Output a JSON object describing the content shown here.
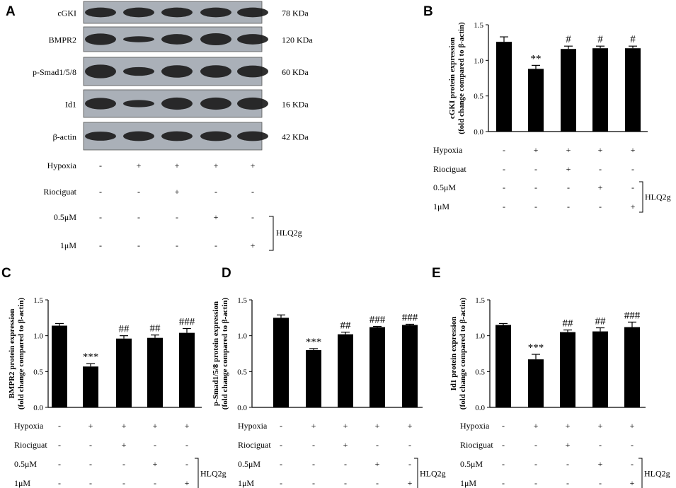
{
  "blot": {
    "panel_label": "A",
    "bands": [
      {
        "name": "cGKI",
        "size": "78 KDa"
      },
      {
        "name": "BMPR2",
        "size": "120 KDa"
      },
      {
        "name": "p-Smad1/5/8",
        "size": "60 KDa"
      },
      {
        "name": "Id1",
        "size": "16 KDa"
      },
      {
        "name": "β-actin",
        "size": "42 KDa"
      }
    ],
    "conditions": {
      "rows": [
        {
          "label": "Hypoxia",
          "marks": [
            "-",
            "+",
            "+",
            "+",
            "+"
          ]
        },
        {
          "label": "Riociguat",
          "marks": [
            "-",
            "-",
            "+",
            "-",
            "-"
          ]
        },
        {
          "label": "0.5μM",
          "marks": [
            "-",
            "-",
            "-",
            "+",
            "-"
          ]
        },
        {
          "label": "1μM",
          "marks": [
            "-",
            "-",
            "-",
            "-",
            "+"
          ]
        }
      ],
      "group_label": "HLQ2g"
    }
  },
  "chart_data": [
    {
      "panel": "B",
      "type": "bar",
      "ylabel_line1": "cGKI protein  expression",
      "ylabel_line2": "(fold change compared to β-actin)",
      "ylim": [
        0,
        1.5
      ],
      "yticks": [
        "0.0",
        "0.5",
        "1.0",
        "1.5"
      ],
      "values": [
        1.26,
        0.88,
        1.16,
        1.17,
        1.17
      ],
      "errors": [
        0.07,
        0.05,
        0.04,
        0.03,
        0.03
      ],
      "annotations": [
        "",
        "**",
        "#",
        "#",
        "#"
      ]
    },
    {
      "panel": "C",
      "type": "bar",
      "ylabel_line1": "BMPR2 protein  expression",
      "ylabel_line2": "(fold change compared to β-actin)",
      "ylim": [
        0,
        1.5
      ],
      "yticks": [
        "0.0",
        "0.5",
        "1.0",
        "1.5"
      ],
      "values": [
        1.14,
        0.57,
        0.96,
        0.97,
        1.04
      ],
      "errors": [
        0.03,
        0.04,
        0.04,
        0.04,
        0.06
      ],
      "annotations": [
        "",
        "***",
        "##",
        "##",
        "###"
      ]
    },
    {
      "panel": "D",
      "type": "bar",
      "ylabel_line1": "p-Smad1/5/8 protein  expression",
      "ylabel_line2": "(fold change compared to β-actin)",
      "ylim": [
        0,
        1.5
      ],
      "yticks": [
        "0.0",
        "0.5",
        "1.0",
        "1.5"
      ],
      "values": [
        1.25,
        0.8,
        1.02,
        1.12,
        1.15
      ],
      "errors": [
        0.04,
        0.02,
        0.03,
        0.01,
        0.01
      ],
      "annotations": [
        "",
        "***",
        "##",
        "###",
        "###"
      ]
    },
    {
      "panel": "E",
      "type": "bar",
      "ylabel_line1": "Id1 protein  expression",
      "ylabel_line2": "(fold change compared to β-actin)",
      "ylim": [
        0,
        1.5
      ],
      "yticks": [
        "0.0",
        "0.5",
        "1.0",
        "1.5"
      ],
      "values": [
        1.15,
        0.67,
        1.05,
        1.06,
        1.12
      ],
      "errors": [
        0.02,
        0.07,
        0.03,
        0.05,
        0.07
      ],
      "annotations": [
        "",
        "***",
        "##",
        "##",
        "###"
      ]
    }
  ]
}
